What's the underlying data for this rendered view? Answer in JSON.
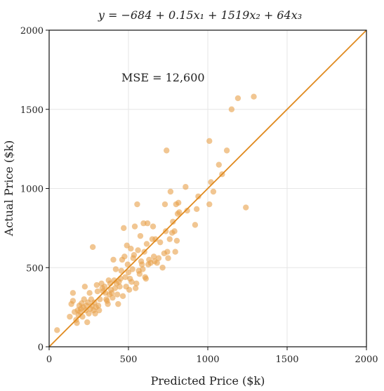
{
  "chart_data": {
    "type": "scatter",
    "title": "y = −684 + 0.15x₁ + 1519x₂ + 64x₃",
    "xlabel": "Predicted Price ($k)",
    "ylabel": "Actual Price ($k)",
    "xlim": [
      0,
      2000
    ],
    "ylim": [
      0,
      2000
    ],
    "xticks": [
      0,
      500,
      1000,
      1500,
      2000
    ],
    "yticks": [
      0,
      500,
      1000,
      1500,
      2000
    ],
    "x_tick_labels": [
      "0",
      "500",
      "1000",
      "1500",
      "2000"
    ],
    "y_tick_labels": [
      "0",
      "500",
      "1000",
      "1500",
      "2000"
    ],
    "grid": true,
    "annotation": "MSE = 12,600",
    "reference_line": {
      "from": [
        0,
        0
      ],
      "to": [
        2000,
        2000
      ],
      "color": "#e08a1e"
    },
    "point_color": "#e8a04a",
    "points": [
      [
        50,
        105
      ],
      [
        130,
        190
      ],
      [
        140,
        270
      ],
      [
        150,
        290
      ],
      [
        150,
        340
      ],
      [
        160,
        220
      ],
      [
        170,
        170
      ],
      [
        175,
        150
      ],
      [
        180,
        230
      ],
      [
        185,
        200
      ],
      [
        190,
        260
      ],
      [
        195,
        220
      ],
      [
        200,
        240
      ],
      [
        205,
        275
      ],
      [
        210,
        190
      ],
      [
        215,
        250
      ],
      [
        220,
        300
      ],
      [
        225,
        380
      ],
      [
        230,
        230
      ],
      [
        235,
        260
      ],
      [
        240,
        155
      ],
      [
        245,
        280
      ],
      [
        250,
        210
      ],
      [
        255,
        340
      ],
      [
        260,
        240
      ],
      [
        265,
        300
      ],
      [
        270,
        260
      ],
      [
        275,
        630
      ],
      [
        280,
        230
      ],
      [
        285,
        280
      ],
      [
        290,
        210
      ],
      [
        295,
        250
      ],
      [
        300,
        390
      ],
      [
        305,
        350
      ],
      [
        310,
        260
      ],
      [
        315,
        230
      ],
      [
        320,
        300
      ],
      [
        330,
        400
      ],
      [
        335,
        370
      ],
      [
        340,
        350
      ],
      [
        350,
        380
      ],
      [
        355,
        340
      ],
      [
        360,
        300
      ],
      [
        365,
        290
      ],
      [
        370,
        270
      ],
      [
        375,
        420
      ],
      [
        380,
        330
      ],
      [
        385,
        400
      ],
      [
        390,
        360
      ],
      [
        395,
        340
      ],
      [
        400,
        310
      ],
      [
        405,
        550
      ],
      [
        410,
        420
      ],
      [
        415,
        370
      ],
      [
        420,
        490
      ],
      [
        425,
        400
      ],
      [
        430,
        330
      ],
      [
        435,
        270
      ],
      [
        440,
        410
      ],
      [
        445,
        380
      ],
      [
        450,
        430
      ],
      [
        455,
        480
      ],
      [
        460,
        550
      ],
      [
        465,
        320
      ],
      [
        470,
        750
      ],
      [
        475,
        570
      ],
      [
        480,
        440
      ],
      [
        485,
        380
      ],
      [
        490,
        640
      ],
      [
        495,
        520
      ],
      [
        500,
        470
      ],
      [
        505,
        360
      ],
      [
        510,
        430
      ],
      [
        515,
        620
      ],
      [
        520,
        410
      ],
      [
        525,
        490
      ],
      [
        530,
        560
      ],
      [
        535,
        580
      ],
      [
        540,
        760
      ],
      [
        545,
        370
      ],
      [
        550,
        400
      ],
      [
        555,
        900
      ],
      [
        560,
        610
      ],
      [
        565,
        480
      ],
      [
        570,
        460
      ],
      [
        575,
        700
      ],
      [
        580,
        540
      ],
      [
        585,
        520
      ],
      [
        590,
        490
      ],
      [
        595,
        780
      ],
      [
        600,
        600
      ],
      [
        605,
        440
      ],
      [
        610,
        430
      ],
      [
        615,
        650
      ],
      [
        620,
        780
      ],
      [
        625,
        520
      ],
      [
        630,
        550
      ],
      [
        640,
        530
      ],
      [
        650,
        680
      ],
      [
        655,
        760
      ],
      [
        660,
        570
      ],
      [
        665,
        540
      ],
      [
        670,
        680
      ],
      [
        680,
        530
      ],
      [
        690,
        560
      ],
      [
        700,
        660
      ],
      [
        715,
        500
      ],
      [
        725,
        590
      ],
      [
        730,
        900
      ],
      [
        735,
        730
      ],
      [
        740,
        1240
      ],
      [
        745,
        600
      ],
      [
        750,
        560
      ],
      [
        760,
        680
      ],
      [
        765,
        980
      ],
      [
        775,
        720
      ],
      [
        780,
        790
      ],
      [
        790,
        730
      ],
      [
        795,
        600
      ],
      [
        800,
        900
      ],
      [
        805,
        670
      ],
      [
        810,
        840
      ],
      [
        815,
        910
      ],
      [
        820,
        850
      ],
      [
        860,
        1010
      ],
      [
        870,
        860
      ],
      [
        920,
        770
      ],
      [
        930,
        870
      ],
      [
        940,
        950
      ],
      [
        1010,
        1300
      ],
      [
        1010,
        900
      ],
      [
        1020,
        1040
      ],
      [
        1035,
        980
      ],
      [
        1070,
        1150
      ],
      [
        1090,
        1090
      ],
      [
        1120,
        1240
      ],
      [
        1150,
        1500
      ],
      [
        1190,
        1570
      ],
      [
        1240,
        880
      ],
      [
        1290,
        1580
      ]
    ]
  }
}
